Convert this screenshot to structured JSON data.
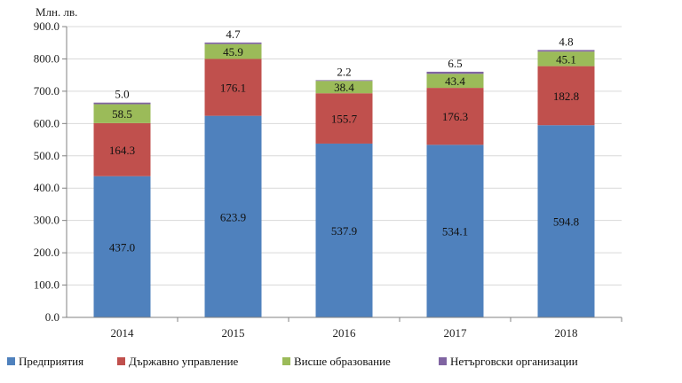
{
  "chart_data": {
    "type": "bar",
    "stacked": true,
    "title": "",
    "ylabel": "Млн. лв.",
    "xlabel": "",
    "categories": [
      "2014",
      "2015",
      "2016",
      "2017",
      "2018"
    ],
    "ylim": [
      0,
      900
    ],
    "yticks": [
      "0.0",
      "100.0",
      "200.0",
      "300.0",
      "400.0",
      "500.0",
      "600.0",
      "700.0",
      "800.0",
      "900.0"
    ],
    "grid": true,
    "legend_position": "bottom",
    "series": [
      {
        "name": "Предприятия",
        "color": "#4F81BD",
        "values": [
          437.0,
          623.9,
          537.9,
          534.1,
          594.8
        ],
        "labels": [
          "437.0",
          "623.9",
          "537.9",
          "534.1",
          "594.8"
        ]
      },
      {
        "name": "Държавно управление",
        "color": "#C0504D",
        "values": [
          164.3,
          176.1,
          155.7,
          176.3,
          182.8
        ],
        "labels": [
          "164.3",
          "176.1",
          "155.7",
          "176.3",
          "182.8"
        ]
      },
      {
        "name": "Висше образование",
        "color": "#9BBB59",
        "values": [
          58.5,
          45.9,
          38.4,
          43.4,
          45.1
        ],
        "labels": [
          "58.5",
          "45.9",
          "38.4",
          "43.4",
          "45.1"
        ]
      },
      {
        "name": "Нетърговски организации",
        "color": "#8064A2",
        "values": [
          5.0,
          4.7,
          2.2,
          6.5,
          4.8
        ],
        "labels": [
          "5.0",
          "4.7",
          "2.2",
          "6.5",
          "4.8"
        ]
      }
    ]
  }
}
